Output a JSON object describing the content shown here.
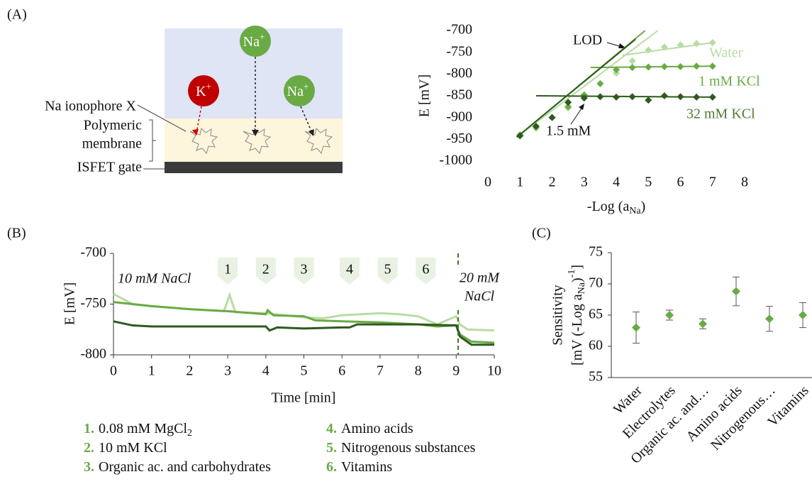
{
  "panel_labels": [
    "(A)",
    "(B)",
    "(C)"
  ],
  "diagram": {
    "ions": [
      {
        "symbol": "K",
        "charge": "+"
      },
      {
        "symbol": "Na",
        "charge": "+"
      },
      {
        "symbol": "Na",
        "charge": "+"
      }
    ],
    "labels": [
      "Na ionophore X",
      "Polymeric",
      "membrane",
      "ISFET gate"
    ]
  },
  "chart_data": [
    {
      "type": "scatter",
      "y_label": "E [mV]",
      "x_label": [
        "-Log (a",
        "Na",
        ")"
      ],
      "xlim": [
        0,
        8
      ],
      "xticks": [
        0,
        1,
        2,
        3,
        4,
        5,
        6,
        7,
        8
      ],
      "ylim": [
        -1000,
        -700
      ],
      "yticks": [
        -1000,
        -950,
        -900,
        -850,
        -800,
        -750,
        -700
      ],
      "series": [
        {
          "name": "Water",
          "color": "#b9dca3",
          "x": [
            1,
            1.5,
            2,
            2.5,
            3,
            3.5,
            4,
            4.5,
            5,
            5.5,
            6,
            6.5,
            7
          ],
          "values": [
            -940,
            -925,
            -900,
            -878,
            -848,
            -822,
            -798,
            -770,
            -745,
            -738,
            -733,
            -730,
            -728
          ],
          "trend_lines": [
            {
              "x": [
                0.9,
                5.3
              ],
              "y": [
                -945,
                -700
              ]
            },
            {
              "x": [
                4.2,
                7
              ],
              "y": [
                -757,
                -728
              ]
            }
          ]
        },
        {
          "name": "1 mM KCl",
          "color": "#6aaa44",
          "x": [
            1,
            1.5,
            2,
            2.5,
            3,
            3.5,
            4,
            4.5,
            5,
            5.5,
            6,
            6.5,
            7
          ],
          "values": [
            -940,
            -922,
            -900,
            -875,
            -848,
            -822,
            -790,
            -785,
            -784,
            -783,
            -783,
            -782,
            -782
          ],
          "trend_lines": [
            {
              "x": [
                0.9,
                4.9
              ],
              "y": [
                -945,
                -700
              ]
            },
            {
              "x": [
                3.2,
                7
              ],
              "y": [
                -785,
                -782
              ]
            }
          ]
        },
        {
          "name": "32 mM KCl",
          "color": "#2f5a1f",
          "x": [
            1,
            1.5,
            2,
            2.5,
            3,
            3.5,
            4,
            4.5,
            5,
            5.5,
            6,
            6.5,
            7
          ],
          "values": [
            -942,
            -920,
            -900,
            -865,
            -855,
            -852,
            -853,
            -852,
            -860,
            -850,
            -852,
            -853,
            -853
          ],
          "trend_lines": [
            {
              "x": [
                0.9,
                4.6
              ],
              "y": [
                -945,
                -720
              ]
            },
            {
              "x": [
                1.5,
                7
              ],
              "y": [
                -850,
                -853
              ]
            }
          ]
        }
      ],
      "annotations": [
        "LOD",
        "1.5 mM"
      ]
    },
    {
      "type": "line",
      "y_label": "E [mV]",
      "x_label": "Time [min]",
      "xlim": [
        0,
        10
      ],
      "xticks": [
        0,
        1,
        2,
        3,
        4,
        5,
        6,
        7,
        8,
        9,
        10
      ],
      "ylim": [
        -800,
        -700
      ],
      "yticks": [
        -800,
        -750,
        -700
      ],
      "series": [
        {
          "color": "#b9dca3",
          "x": [
            0,
            0.5,
            1,
            2,
            2.9,
            3.05,
            3.2,
            4,
            5,
            5.5,
            6,
            6.5,
            7,
            7.5,
            8,
            8.5,
            9,
            9.1,
            9.3,
            10
          ],
          "values": [
            -740,
            -750,
            -752,
            -755,
            -757,
            -741,
            -758,
            -759,
            -763,
            -764,
            -761,
            -760,
            -759,
            -760,
            -762,
            -770,
            -762,
            -770,
            -775,
            -776
          ]
        },
        {
          "color": "#6aaa44",
          "x": [
            0,
            0.5,
            1,
            2,
            3,
            4,
            4.05,
            4.2,
            5,
            5.3,
            6,
            7,
            8,
            8.5,
            9,
            9.1,
            9.4,
            10
          ],
          "values": [
            -748,
            -750,
            -752,
            -755,
            -757,
            -760,
            -756,
            -761,
            -762,
            -766,
            -767,
            -768,
            -770,
            -772,
            -771,
            -780,
            -787,
            -788
          ]
        },
        {
          "color": "#2f5a1f",
          "x": [
            0,
            0.5,
            1,
            2,
            3,
            4,
            4.1,
            4.3,
            5,
            6,
            6.2,
            6.4,
            7,
            8,
            9,
            9.1,
            9.4,
            10
          ],
          "values": [
            -767,
            -771,
            -772,
            -772,
            -772,
            -772,
            -776,
            -773,
            -774,
            -773,
            -773,
            -770,
            -770,
            -770,
            -771,
            -782,
            -790,
            -790
          ]
        }
      ],
      "start_label": "10 mM NaCl",
      "end_label": [
        "20 mM",
        "NaCl"
      ],
      "switch_x": 9.05,
      "events": [
        {
          "label": "1",
          "x": 3
        },
        {
          "label": "2",
          "x": 4
        },
        {
          "label": "3",
          "x": 5
        },
        {
          "label": "4",
          "x": 6.2
        },
        {
          "label": "5",
          "x": 7.2
        },
        {
          "label": "6",
          "x": 8.2
        }
      ],
      "legend": [
        {
          "number": "1.",
          "text": "0.08 mM MgCl",
          "sub": "2"
        },
        {
          "number": "2.",
          "text": "10 mM KCl"
        },
        {
          "number": "3.",
          "text": "Organic ac. and carbohydrates"
        },
        {
          "number": "4.",
          "text": "Amino acids"
        },
        {
          "number": "5.",
          "text": "Nitrogenous substances"
        },
        {
          "number": "6.",
          "text": "Vitamins"
        }
      ]
    },
    {
      "type": "errorbar",
      "y_label": "Sensitivity",
      "y_label2": [
        "[mV (-Log a",
        "Na",
        ")",
        "-1",
        "]"
      ],
      "categories": [
        "Water",
        "Electrolytes",
        "Organic ac. and…",
        "Amino acids",
        "Nitrogenous…",
        "Vitamins"
      ],
      "values": [
        63,
        65,
        63.6,
        68.8,
        64.4,
        65
      ],
      "errors": [
        2.5,
        0.8,
        0.8,
        2.3,
        2,
        2
      ],
      "color": "#6aaa44",
      "ylim": [
        55,
        75
      ],
      "yticks": [
        55,
        60,
        65,
        70,
        75
      ]
    }
  ]
}
